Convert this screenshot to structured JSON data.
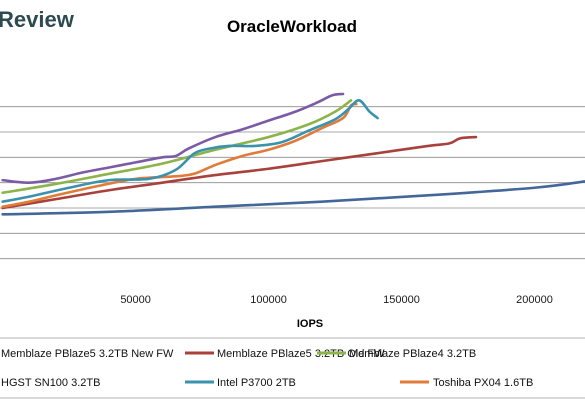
{
  "brand": {
    "text": "Review"
  },
  "chart_data": {
    "type": "line",
    "title": "OracleWorkload",
    "xlabel": "IOPS",
    "ylabel": "",
    "xlim": [
      -1000,
      219000
    ],
    "ylim": [
      0,
      9
    ],
    "x_ticks": [
      50000,
      100000,
      150000,
      200000
    ],
    "x_tick_labels": [
      "50000",
      "100000",
      "150000",
      "200000"
    ],
    "grid": true,
    "legend_position": "bottom",
    "series": [
      {
        "name": "Memblaze PBlaze5 3.2TB New FW",
        "color": "#7b5aa6",
        "points": [
          [
            0,
            4.1
          ],
          [
            10000,
            4.0
          ],
          [
            20000,
            4.15
          ],
          [
            30000,
            4.4
          ],
          [
            40000,
            4.6
          ],
          [
            50000,
            4.8
          ],
          [
            60000,
            5.0
          ],
          [
            65000,
            5.05
          ],
          [
            70000,
            5.35
          ],
          [
            80000,
            5.8
          ],
          [
            90000,
            6.1
          ],
          [
            100000,
            6.45
          ],
          [
            110000,
            6.8
          ],
          [
            118000,
            7.15
          ],
          [
            124000,
            7.45
          ],
          [
            128000,
            7.5
          ]
        ]
      },
      {
        "name": "Memblaze PBlaze5 3.2TB Old FW",
        "color": "#a8413c",
        "points": [
          [
            0,
            3.0
          ],
          [
            20000,
            3.35
          ],
          [
            40000,
            3.7
          ],
          [
            60000,
            4.0
          ],
          [
            80000,
            4.3
          ],
          [
            100000,
            4.55
          ],
          [
            120000,
            4.85
          ],
          [
            140000,
            5.15
          ],
          [
            160000,
            5.45
          ],
          [
            168000,
            5.55
          ],
          [
            172000,
            5.75
          ],
          [
            178000,
            5.8
          ]
        ]
      },
      {
        "name": "Memblaze PBlaze4 3.2TB",
        "color": "#8cb44b",
        "points": [
          [
            0,
            3.6
          ],
          [
            20000,
            3.95
          ],
          [
            40000,
            4.35
          ],
          [
            60000,
            4.75
          ],
          [
            80000,
            5.3
          ],
          [
            100000,
            5.8
          ],
          [
            115000,
            6.3
          ],
          [
            125000,
            6.8
          ],
          [
            131000,
            7.25
          ]
        ]
      },
      {
        "name": "HGST SN100 3.2TB",
        "color": "#44679a",
        "points": [
          [
            0,
            2.75
          ],
          [
            40000,
            2.85
          ],
          [
            80000,
            3.05
          ],
          [
            120000,
            3.25
          ],
          [
            160000,
            3.5
          ],
          [
            200000,
            3.8
          ],
          [
            219000,
            4.05
          ]
        ]
      },
      {
        "name": "Intel P3700 2TB",
        "color": "#3a92ad",
        "points": [
          [
            0,
            3.25
          ],
          [
            10000,
            3.45
          ],
          [
            25000,
            3.8
          ],
          [
            40000,
            4.1
          ],
          [
            55000,
            4.15
          ],
          [
            65000,
            4.5
          ],
          [
            72000,
            5.15
          ],
          [
            78000,
            5.35
          ],
          [
            85000,
            5.45
          ],
          [
            95000,
            5.45
          ],
          [
            105000,
            5.6
          ],
          [
            115000,
            6.05
          ],
          [
            125000,
            6.5
          ],
          [
            130000,
            6.9
          ],
          [
            134000,
            7.25
          ],
          [
            138000,
            6.8
          ],
          [
            141000,
            6.55
          ]
        ]
      },
      {
        "name": "Toshiba PX04 1.6TB",
        "color": "#e07b39",
        "points": [
          [
            0,
            3.05
          ],
          [
            10000,
            3.25
          ],
          [
            20000,
            3.5
          ],
          [
            35000,
            3.85
          ],
          [
            50000,
            4.15
          ],
          [
            65000,
            4.25
          ],
          [
            72000,
            4.35
          ],
          [
            80000,
            4.7
          ],
          [
            90000,
            5.05
          ],
          [
            100000,
            5.3
          ],
          [
            110000,
            5.65
          ],
          [
            120000,
            6.15
          ],
          [
            128000,
            6.55
          ],
          [
            131000,
            7.05
          ],
          [
            133000,
            7.1
          ]
        ]
      }
    ]
  }
}
